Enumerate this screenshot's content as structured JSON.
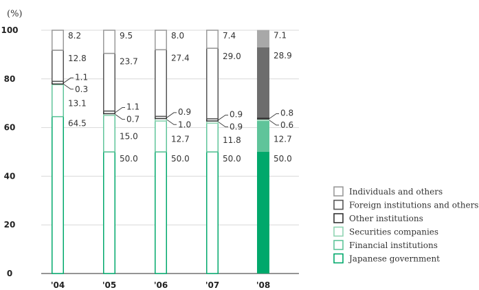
{
  "chart_data": {
    "type": "bar",
    "stacked": true,
    "unit_label": "(%)",
    "categories": [
      "'04",
      "'05",
      "'06",
      "'07",
      "'08"
    ],
    "ylim": [
      0,
      100
    ],
    "yticks": [
      "0",
      "20",
      "40",
      "60",
      "80",
      "100"
    ],
    "yticks_values": [
      0,
      20,
      40,
      60,
      80,
      100
    ],
    "grid": "horizontal",
    "legend_position": "right",
    "outlined_style_categories": [
      "'04",
      "'05",
      "'06",
      "'07"
    ],
    "filled_style_categories": [
      "'08"
    ],
    "series": [
      {
        "name": "Japanese government",
        "values": [
          64.5,
          50.0,
          50.0,
          50.0,
          50.0
        ],
        "labels": [
          "64.5",
          "50.0",
          "50.0",
          "50.0",
          "50.0"
        ],
        "color": "#00a86b",
        "outline": "#00a86b"
      },
      {
        "name": "Financial institutions",
        "values": [
          13.1,
          15.0,
          12.7,
          11.8,
          12.7
        ],
        "labels": [
          "13.1",
          "15.0",
          "12.7",
          "11.8",
          "12.7"
        ],
        "color": "#5fc49a",
        "outline": "#5fc49a"
      },
      {
        "name": "Securities companies",
        "values": [
          0.3,
          0.7,
          1.0,
          0.9,
          0.6
        ],
        "labels": [
          "0.3",
          "0.7",
          "1.0",
          "0.9",
          "0.6"
        ],
        "color": "#a9dfc4",
        "outline": "#8fd4b2"
      },
      {
        "name": "Other institutions",
        "values": [
          1.1,
          1.1,
          0.9,
          0.9,
          0.8
        ],
        "labels": [
          "1.1",
          "1.1",
          "0.9",
          "0.9",
          "0.8"
        ],
        "color": "#333333",
        "outline": "#333333"
      },
      {
        "name": "Foreign institutions and others",
        "values": [
          12.8,
          23.7,
          27.4,
          29.0,
          28.9
        ],
        "labels": [
          "12.8",
          "23.7",
          "27.4",
          "29.0",
          "28.9"
        ],
        "color": "#6d6d6d",
        "outline": "#555555"
      },
      {
        "name": "Individuals and others",
        "values": [
          8.2,
          9.5,
          8.0,
          7.4,
          7.1
        ],
        "labels": [
          "8.2",
          "9.5",
          "8.0",
          "7.4",
          "7.1"
        ],
        "color": "#a8a8a8",
        "outline": "#999999"
      }
    ]
  }
}
